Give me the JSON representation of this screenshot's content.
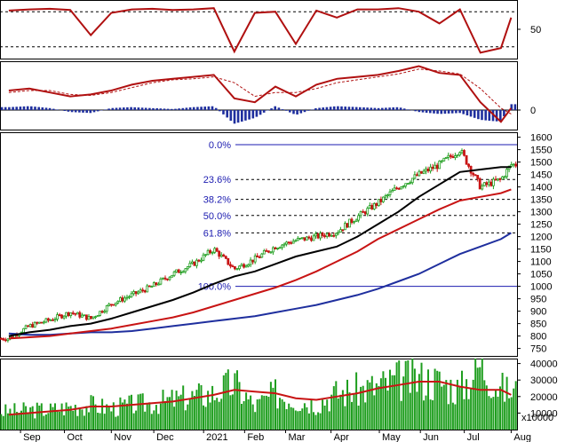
{
  "colors": {
    "up": "#1f9e1f",
    "down": "#c81414",
    "ma_fast": "#000000",
    "ma_mid": "#c81414",
    "ma_slow": "#1f2f9e",
    "rsi": "#b01010",
    "macd_hist": "#1f2f9e",
    "fib_line": "#1b1bb0",
    "volume": "#1f9e1f",
    "volume_ma": "#c81414"
  },
  "chart_data": [
    {
      "type": "line",
      "panel": "oscillator",
      "y_ticks": [
        50
      ],
      "ylim": [
        0,
        100
      ],
      "reference_lines": [
        80,
        20
      ],
      "x": [
        "2020-08-24",
        "2020-09-07",
        "2020-09-21",
        "2020-10-05",
        "2020-10-19",
        "2020-11-02",
        "2020-11-16",
        "2020-11-30",
        "2020-12-14",
        "2020-12-28",
        "2021-01-11",
        "2021-01-25",
        "2021-02-08",
        "2021-02-22",
        "2021-03-08",
        "2021-03-22",
        "2021-04-05",
        "2021-04-19",
        "2021-05-03",
        "2021-05-17",
        "2021-05-31",
        "2021-06-14",
        "2021-06-28",
        "2021-07-12",
        "2021-07-26",
        "2021-08-02"
      ],
      "values": [
        82,
        84,
        85,
        83,
        40,
        78,
        84,
        85,
        83,
        84,
        86,
        12,
        78,
        80,
        25,
        82,
        70,
        84,
        84,
        86,
        80,
        60,
        84,
        10,
        18,
        70
      ]
    },
    {
      "type": "bar",
      "panel": "macd",
      "y_ticks": [
        0
      ],
      "x": [
        "2020-08-24",
        "2020-09-07",
        "2020-09-21",
        "2020-10-05",
        "2020-10-19",
        "2020-11-02",
        "2020-11-16",
        "2020-11-30",
        "2020-12-14",
        "2020-12-28",
        "2021-01-11",
        "2021-01-25",
        "2021-02-08",
        "2021-02-22",
        "2021-03-08",
        "2021-03-22",
        "2021-04-05",
        "2021-04-19",
        "2021-05-03",
        "2021-05-17",
        "2021-05-31",
        "2021-06-14",
        "2021-06-28",
        "2021-07-12",
        "2021-07-26",
        "2021-08-02"
      ],
      "histogram": [
        3,
        4,
        2,
        -2,
        -3,
        2,
        3,
        2,
        1,
        3,
        4,
        -14,
        -8,
        4,
        -5,
        2,
        4,
        3,
        2,
        3,
        -2,
        -4,
        -3,
        -10,
        -12,
        6
      ],
      "macd_line": [
        20,
        22,
        18,
        14,
        16,
        20,
        26,
        30,
        32,
        34,
        36,
        12,
        8,
        24,
        14,
        26,
        32,
        34,
        36,
        40,
        45,
        38,
        36,
        8,
        -12,
        2
      ],
      "signal_line": [
        18,
        20,
        20,
        16,
        15,
        18,
        23,
        28,
        31,
        32,
        34,
        28,
        14,
        18,
        18,
        22,
        28,
        31,
        34,
        37,
        42,
        40,
        37,
        22,
        2,
        -4
      ]
    },
    {
      "type": "candlestick",
      "panel": "price",
      "y_ticks": [
        750,
        800,
        850,
        900,
        950,
        1000,
        1050,
        1100,
        1150,
        1200,
        1250,
        1300,
        1350,
        1400,
        1450,
        1500,
        1550,
        1600
      ],
      "ylim": [
        720,
        1620
      ],
      "x": [
        "2020-08-24",
        "2020-09-07",
        "2020-09-21",
        "2020-10-05",
        "2020-10-19",
        "2020-11-02",
        "2020-11-16",
        "2020-11-30",
        "2020-12-14",
        "2020-12-28",
        "2021-01-11",
        "2021-01-25",
        "2021-02-08",
        "2021-02-22",
        "2021-03-08",
        "2021-03-22",
        "2021-04-05",
        "2021-04-19",
        "2021-05-03",
        "2021-05-17",
        "2021-05-31",
        "2021-06-14",
        "2021-06-28",
        "2021-07-12",
        "2021-07-26",
        "2021-08-02"
      ],
      "close": [
        790,
        840,
        865,
        895,
        870,
        930,
        965,
        1000,
        1050,
        1090,
        1150,
        1070,
        1110,
        1160,
        1185,
        1200,
        1220,
        1280,
        1335,
        1400,
        1450,
        1490,
        1550,
        1400,
        1430,
        1490
      ],
      "ma_fast": [
        800,
        815,
        825,
        840,
        850,
        870,
        895,
        920,
        945,
        975,
        1010,
        1040,
        1060,
        1090,
        1120,
        1140,
        1160,
        1200,
        1250,
        1300,
        1360,
        1410,
        1460,
        1470,
        1480,
        1480
      ],
      "ma_mid": [
        790,
        795,
        800,
        810,
        820,
        830,
        845,
        860,
        875,
        895,
        920,
        945,
        970,
        995,
        1025,
        1060,
        1100,
        1140,
        1190,
        1230,
        1270,
        1310,
        1345,
        1360,
        1375,
        1390
      ],
      "ma_slow": [
        810,
        805,
        805,
        810,
        815,
        815,
        820,
        830,
        840,
        850,
        860,
        870,
        880,
        895,
        910,
        925,
        945,
        965,
        990,
        1020,
        1050,
        1090,
        1130,
        1160,
        1190,
        1215
      ],
      "fibonacci": [
        {
          "label": "0.0%",
          "value": 1570
        },
        {
          "label": "23.6%",
          "value": 1430
        },
        {
          "label": "38.2%",
          "value": 1350
        },
        {
          "label": "50.0%",
          "value": 1285
        },
        {
          "label": "61.8%",
          "value": 1215
        },
        {
          "label": "100.0%",
          "value": 1000
        }
      ]
    },
    {
      "type": "bar",
      "panel": "volume",
      "y_ticks": [
        10000,
        20000,
        30000,
        40000
      ],
      "ylim": [
        0,
        43000
      ],
      "unit_label": "x10000",
      "x": [
        "2020-08-24",
        "2020-09-07",
        "2020-09-21",
        "2020-10-05",
        "2020-10-19",
        "2020-11-02",
        "2020-11-16",
        "2020-11-30",
        "2020-12-14",
        "2020-12-28",
        "2021-01-11",
        "2021-01-25",
        "2021-02-08",
        "2021-02-22",
        "2021-03-08",
        "2021-03-22",
        "2021-04-05",
        "2021-04-19",
        "2021-05-03",
        "2021-05-17",
        "2021-05-31",
        "2021-06-14",
        "2021-06-28",
        "2021-07-12",
        "2021-07-26",
        "2021-08-02"
      ],
      "values": [
        11000,
        12000,
        12000,
        14000,
        15000,
        13000,
        15000,
        16000,
        18000,
        20000,
        22000,
        28000,
        14000,
        22000,
        18000,
        16000,
        22000,
        24000,
        26000,
        30000,
        31000,
        29000,
        24000,
        40000,
        25000,
        23000
      ],
      "ma": [
        9000,
        10000,
        11000,
        12000,
        14000,
        14000,
        15000,
        16000,
        17000,
        19000,
        21000,
        24000,
        23000,
        22000,
        19000,
        18000,
        20000,
        22000,
        25000,
        27000,
        29000,
        29000,
        26000,
        24000,
        24000,
        21000
      ]
    }
  ],
  "x_axis_labels": [
    "Sep",
    "Oct",
    "Nov",
    "Dec",
    "2021",
    "Feb",
    "Mar",
    "Apr",
    "May",
    "Jun",
    "Jul",
    "Aug"
  ]
}
